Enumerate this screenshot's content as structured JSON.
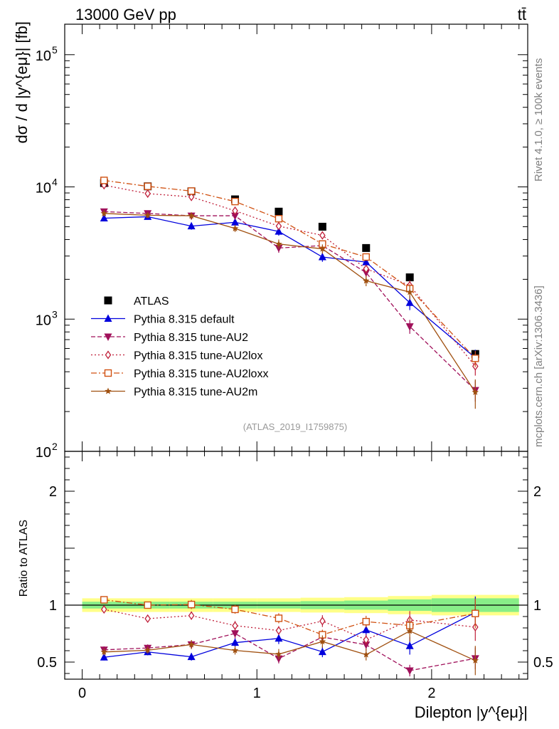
{
  "header": {
    "energy_label": "13000 GeV pp",
    "process_label": "tt̄"
  },
  "side_labels": {
    "rivet": "Rivet 4.1.0, ≥ 100k events",
    "mcplots": "mcplots.cern.ch [arXiv:1306.3436]"
  },
  "analysis_label": "(ATLAS_2019_I1759875)",
  "chart_data": {
    "type": "scatter",
    "title": "13000 GeV pp",
    "xlabel": "Dilepton |y^{eμ}|",
    "ylabel": "dσ / d |y^{eμ}| [fb]",
    "ratio_ylabel": "Ratio to ATLAS",
    "xlim": [
      -0.1,
      2.55
    ],
    "ylim": [
      100,
      170000
    ],
    "ratio_ylim": [
      0.35,
      2.35
    ],
    "y_scale": "log",
    "x_ticks": [
      "0",
      "1",
      "2"
    ],
    "y_ticks_main": [
      {
        "mantissa": "10",
        "exp": "2",
        "value": 100
      },
      {
        "mantissa": "10",
        "exp": "3",
        "value": 1000
      },
      {
        "mantissa": "10",
        "exp": "4",
        "value": 10000
      },
      {
        "mantissa": "10",
        "exp": "5",
        "value": 100000
      }
    ],
    "y_ticks_ratio": [
      "0.5",
      "1",
      "2"
    ],
    "legend_position": "center-left",
    "x": [
      0.125,
      0.375,
      0.625,
      0.875,
      1.125,
      1.375,
      1.625,
      1.875,
      2.25
    ],
    "x_bins": [
      [
        0,
        0.25
      ],
      [
        0.25,
        0.5
      ],
      [
        0.5,
        0.75
      ],
      [
        0.75,
        1.0
      ],
      [
        1.0,
        1.25
      ],
      [
        1.25,
        1.5
      ],
      [
        1.5,
        1.75
      ],
      [
        1.75,
        2.0
      ],
      [
        2.0,
        2.5
      ]
    ],
    "reference": {
      "name": "ATLAS",
      "values": [
        10700,
        10100,
        9250,
        8050,
        6500,
        5000,
        3450,
        2070,
        545
      ],
      "band_stat": [
        0.03,
        0.03,
        0.03,
        0.03,
        0.03,
        0.035,
        0.04,
        0.05,
        0.06
      ],
      "band_total": [
        0.06,
        0.06,
        0.06,
        0.06,
        0.06,
        0.065,
        0.07,
        0.08,
        0.09
      ]
    },
    "series": [
      {
        "name": "Pythia 8.315 default",
        "color": "#0000dd",
        "marker": "triangle-up",
        "dash": "",
        "values": [
          5800,
          5950,
          5050,
          5400,
          4600,
          2950,
          2700,
          1330,
          510
        ],
        "rel_err": [
          0.05,
          0.05,
          0.06,
          0.06,
          0.07,
          0.08,
          0.08,
          0.12,
          0.15
        ]
      },
      {
        "name": "Pythia 8.315 tune-AU2",
        "color": "#a0105a",
        "marker": "triangle-down",
        "dash": "6,3",
        "values": [
          6500,
          6300,
          6050,
          6050,
          3450,
          3600,
          2250,
          880,
          290
        ],
        "rel_err": [
          0.05,
          0.05,
          0.06,
          0.06,
          0.08,
          0.08,
          0.08,
          0.12,
          0.18
        ]
      },
      {
        "name": "Pythia 8.315 tune-AU2lox",
        "color": "#c0203a",
        "marker": "diamond-open",
        "dash": "2,3",
        "values": [
          10300,
          8900,
          8400,
          6600,
          5050,
          4300,
          2400,
          1800,
          440
        ],
        "rel_err": [
          0.03,
          0.03,
          0.04,
          0.05,
          0.05,
          0.06,
          0.07,
          0.09,
          0.15
        ]
      },
      {
        "name": "Pythia 8.315 tune-AU2loxx",
        "color": "#d05010",
        "marker": "square-open",
        "dash": "8,3,2,3",
        "values": [
          11200,
          10100,
          9300,
          7750,
          5750,
          3700,
          2950,
          1700,
          505
        ],
        "rel_err": [
          0.03,
          0.03,
          0.04,
          0.04,
          0.05,
          0.06,
          0.06,
          0.08,
          0.14
        ]
      },
      {
        "name": "Pythia 8.315 tune-AU2m",
        "color": "#a05010",
        "marker": "star",
        "dash": "",
        "values": [
          6300,
          6100,
          6050,
          4850,
          3700,
          3400,
          1950,
          1600,
          280
        ],
        "rel_err": [
          0.05,
          0.05,
          0.06,
          0.06,
          0.08,
          0.08,
          0.09,
          0.12,
          0.25
        ]
      }
    ]
  }
}
